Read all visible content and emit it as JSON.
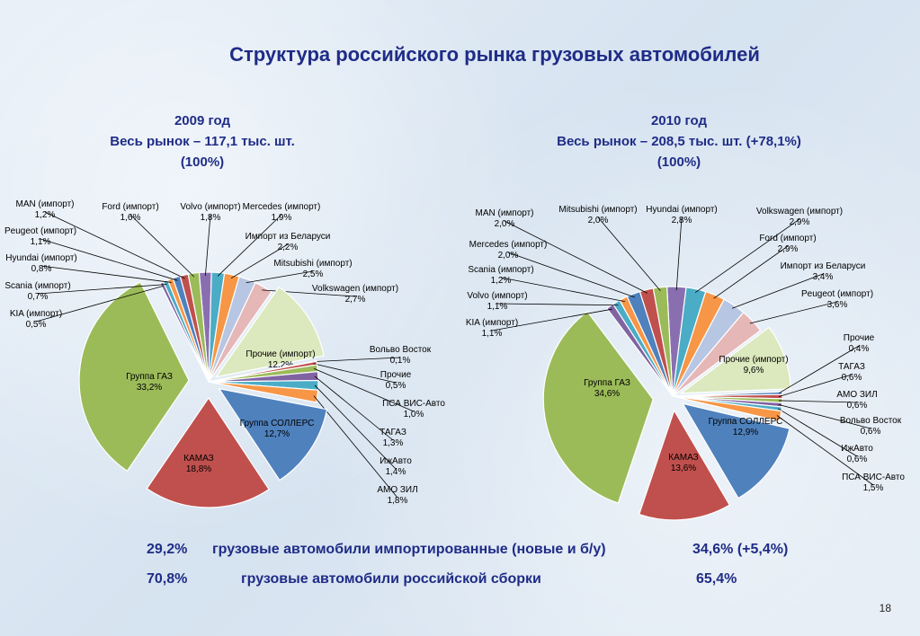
{
  "title": "Структура российского рынка грузовых автомобилей",
  "charts": [
    {
      "year_line": "2009 год",
      "market_line": "Весь рынок – 117,1 тыс. шт.",
      "percent_line": "(100%)"
    },
    {
      "year_line": "2010 год",
      "market_line": "Весь рынок – 208,5 тыс. шт. (+78,1%)",
      "percent_line": "(100%)"
    }
  ],
  "summary": {
    "row1": {
      "value_2009": "29,2%",
      "label": "грузовые автомобили импортированные (новые и б/у)",
      "value_2010": "34,6% (+5,4%)"
    },
    "row2": {
      "value_2009": "70,8%",
      "label": "грузовые автомобили российской сборки",
      "value_2010": "65,4%"
    }
  },
  "page_number": "18",
  "chart_data": [
    {
      "type": "pie",
      "title": "2009 год",
      "slices": [
        {
          "name": "Volvo (импорт)",
          "value": 1.8,
          "label": "1,8%",
          "color": "#8a6fb0"
        },
        {
          "name": "Mercedes (импорт)",
          "value": 1.9,
          "label": "1,9%",
          "color": "#4bacc6"
        },
        {
          "name": "Импорт из Беларуси",
          "value": 2.2,
          "label": "2,2%",
          "color": "#f79646"
        },
        {
          "name": "Mitsubishi (импорт)",
          "value": 2.5,
          "label": "2,5%",
          "color": "#b7c6e3"
        },
        {
          "name": "Volkswagen (импорт)",
          "value": 2.7,
          "label": "2,7%",
          "color": "#e6b7b7"
        },
        {
          "name": "Прочие (импорт)",
          "value": 12.2,
          "label": "12,2%",
          "color": "#dce8bd"
        },
        {
          "name": "Вольво Восток",
          "value": 0.1,
          "label": "0,1%",
          "color": "#4f81bd"
        },
        {
          "name": "Прочие",
          "value": 0.5,
          "label": "0,5%",
          "color": "#c0504d"
        },
        {
          "name": "ПСА ВИС-Авто",
          "value": 1.0,
          "label": "1,0%",
          "color": "#9bbb59"
        },
        {
          "name": "ТАГАЗ",
          "value": 1.3,
          "label": "1,3%",
          "color": "#8064a2"
        },
        {
          "name": "ИжАвто",
          "value": 1.4,
          "label": "1,4%",
          "color": "#4bacc6"
        },
        {
          "name": "АМО ЗИЛ",
          "value": 1.8,
          "label": "1,8%",
          "color": "#f79646"
        },
        {
          "name": "Группа СОЛЛЕРС",
          "value": 12.7,
          "label": "12,7%",
          "color": "#4f81bd"
        },
        {
          "name": "КАМАЗ",
          "value": 18.8,
          "label": "18,8%",
          "color": "#c0504d"
        },
        {
          "name": "Группа ГАЗ",
          "value": 33.2,
          "label": "33,2%",
          "color": "#9bbb59"
        },
        {
          "name": "KIA (импорт)",
          "value": 0.5,
          "label": "0,5%",
          "color": "#8064a2"
        },
        {
          "name": "Scania (импорт)",
          "value": 0.7,
          "label": "0,7%",
          "color": "#4bacc6"
        },
        {
          "name": "Hyundai (импорт)",
          "value": 0.8,
          "label": "0,8%",
          "color": "#f79646"
        },
        {
          "name": "Peugeot (импорт)",
          "value": 1.1,
          "label": "1,1%",
          "color": "#4f81bd"
        },
        {
          "name": "MAN (импорт)",
          "value": 1.2,
          "label": "1,2%",
          "color": "#c0504d"
        },
        {
          "name": "Ford (импорт)",
          "value": 1.6,
          "label": "1,6%",
          "color": "#9bbb59"
        }
      ]
    },
    {
      "type": "pie",
      "title": "2010 год",
      "slices": [
        {
          "name": "Hyundai (импорт)",
          "value": 2.8,
          "label": "2,8%",
          "color": "#8a6fb0"
        },
        {
          "name": "Volkswagen (импорт)",
          "value": 2.9,
          "label": "2,9%",
          "color": "#4bacc6"
        },
        {
          "name": "Ford (импорт)",
          "value": 2.9,
          "label": "2,9%",
          "color": "#f79646"
        },
        {
          "name": "Импорт из Беларуси",
          "value": 3.4,
          "label": "3,4%",
          "color": "#b7c6e3"
        },
        {
          "name": "Peugeot (импорт)",
          "value": 3.6,
          "label": "3,6%",
          "color": "#e6b7b7"
        },
        {
          "name": "Прочие (импорт)",
          "value": 9.6,
          "label": "9,6%",
          "color": "#dce8bd"
        },
        {
          "name": "Прочие",
          "value": 0.4,
          "label": "0,4%",
          "color": "#4f81bd"
        },
        {
          "name": "ТАГАЗ",
          "value": 0.6,
          "label": "0,6%",
          "color": "#c0504d"
        },
        {
          "name": "АМО ЗИЛ",
          "value": 0.6,
          "label": "0,6%",
          "color": "#9bbb59"
        },
        {
          "name": "Вольво Восток",
          "value": 0.6,
          "label": "0,6%",
          "color": "#8064a2"
        },
        {
          "name": "ИжАвто",
          "value": 0.6,
          "label": "0,6%",
          "color": "#4bacc6"
        },
        {
          "name": "ПСА ВИС-Авто",
          "value": 1.5,
          "label": "1,5%",
          "color": "#f79646"
        },
        {
          "name": "Группа СОЛЛЕРС",
          "value": 12.9,
          "label": "12,9%",
          "color": "#4f81bd"
        },
        {
          "name": "КАМАЗ",
          "value": 13.6,
          "label": "13,6%",
          "color": "#c0504d"
        },
        {
          "name": "Группа ГАЗ",
          "value": 34.6,
          "label": "34,6%",
          "color": "#9bbb59"
        },
        {
          "name": "KIA (импорт)",
          "value": 1.1,
          "label": "1,1%",
          "color": "#8064a2"
        },
        {
          "name": "Volvo (импорт)",
          "value": 1.1,
          "label": "1,1%",
          "color": "#4bacc6"
        },
        {
          "name": "Scania (импорт)",
          "value": 1.2,
          "label": "1,2%",
          "color": "#f79646"
        },
        {
          "name": "Mercedes (импорт)",
          "value": 2.0,
          "label": "2,0%",
          "color": "#4f81bd"
        },
        {
          "name": "MAN (импорт)",
          "value": 2.0,
          "label": "2,0%",
          "color": "#c0504d"
        },
        {
          "name": "Mitsubishi (импорт)",
          "value": 2.0,
          "label": "2,0%",
          "color": "#9bbb59"
        }
      ]
    }
  ]
}
